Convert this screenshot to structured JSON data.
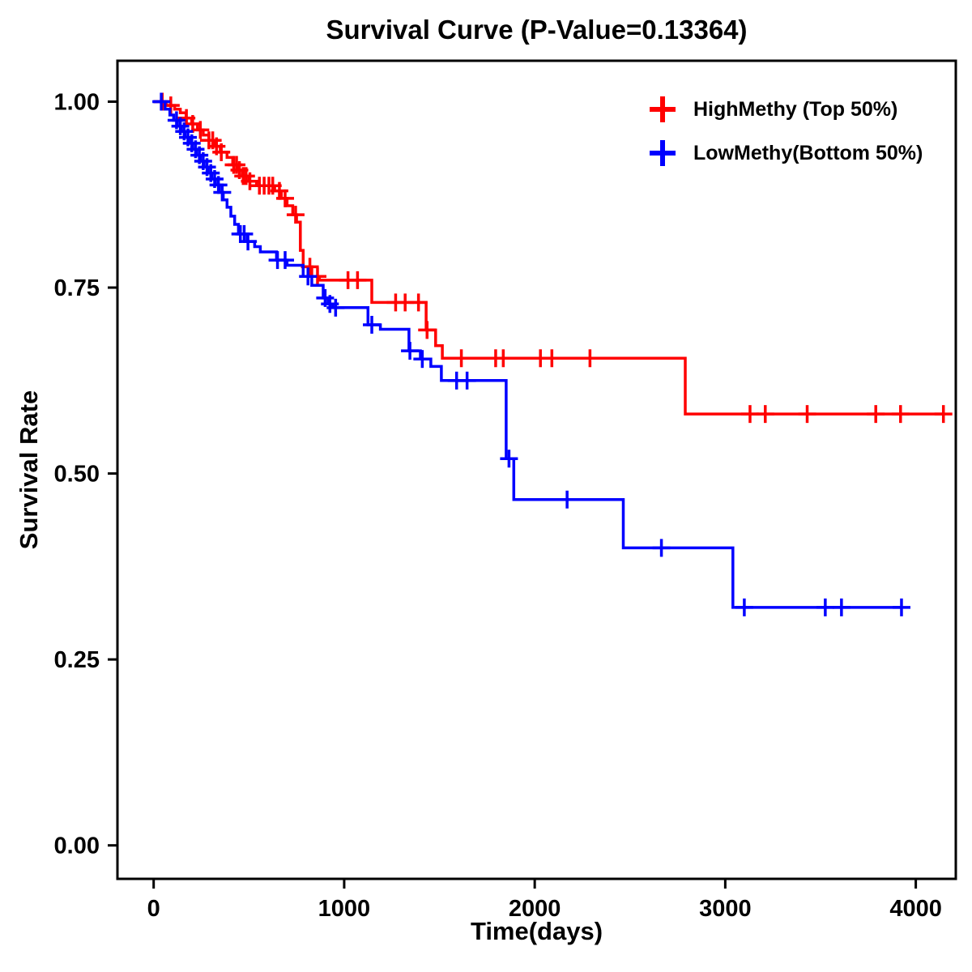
{
  "chart_data": {
    "type": "line",
    "subtype": "kaplan_meier_step_survival",
    "title": "Survival Curve (P-Value=0.13364)",
    "p_value": "0.13364",
    "xlabel": "Time(days)",
    "ylabel": "Survival Rate",
    "xlim": [
      -190,
      4210
    ],
    "ylim": [
      -0.045,
      1.055
    ],
    "grid": false,
    "legend_position": "top-right-inside",
    "xticks": [
      {
        "v": 0,
        "label": "0"
      },
      {
        "v": 1000,
        "label": "1000"
      },
      {
        "v": 2000,
        "label": "2000"
      },
      {
        "v": 3000,
        "label": "3000"
      },
      {
        "v": 4000,
        "label": "4000"
      }
    ],
    "yticks": [
      {
        "v": 0.0,
        "label": "0.00"
      },
      {
        "v": 0.25,
        "label": "0.25"
      },
      {
        "v": 0.5,
        "label": "0.50"
      },
      {
        "v": 0.75,
        "label": "0.75"
      },
      {
        "v": 1.0,
        "label": "1.00"
      }
    ],
    "series": [
      {
        "id": "highmethy",
        "name": "HighMethy (Top 50%)",
        "color": "#ff0000",
        "steps": [
          [
            0,
            1.0
          ],
          [
            65,
            0.995
          ],
          [
            110,
            0.99
          ],
          [
            140,
            0.985
          ],
          [
            170,
            0.978
          ],
          [
            200,
            0.97
          ],
          [
            230,
            0.962
          ],
          [
            260,
            0.955
          ],
          [
            290,
            0.948
          ],
          [
            320,
            0.94
          ],
          [
            350,
            0.932
          ],
          [
            385,
            0.925
          ],
          [
            415,
            0.915
          ],
          [
            440,
            0.908
          ],
          [
            465,
            0.9
          ],
          [
            500,
            0.893
          ],
          [
            540,
            0.887
          ],
          [
            635,
            0.88
          ],
          [
            670,
            0.87
          ],
          [
            700,
            0.86
          ],
          [
            730,
            0.848
          ],
          [
            750,
            0.838
          ],
          [
            770,
            0.8
          ],
          [
            785,
            0.778
          ],
          [
            830,
            0.765
          ],
          [
            870,
            0.76
          ],
          [
            1145,
            0.73
          ],
          [
            1430,
            0.693
          ],
          [
            1480,
            0.672
          ],
          [
            1515,
            0.655
          ],
          [
            2790,
            0.58
          ],
          [
            4150,
            0.58
          ]
        ],
        "censors": [
          [
            45,
            1.0
          ],
          [
            90,
            0.995
          ],
          [
            172,
            0.978
          ],
          [
            205,
            0.97
          ],
          [
            245,
            0.962
          ],
          [
            290,
            0.948
          ],
          [
            310,
            0.948
          ],
          [
            330,
            0.94
          ],
          [
            355,
            0.932
          ],
          [
            420,
            0.915
          ],
          [
            435,
            0.915
          ],
          [
            450,
            0.908
          ],
          [
            470,
            0.9
          ],
          [
            485,
            0.9
          ],
          [
            505,
            0.893
          ],
          [
            555,
            0.887
          ],
          [
            580,
            0.887
          ],
          [
            605,
            0.887
          ],
          [
            625,
            0.887
          ],
          [
            660,
            0.88
          ],
          [
            690,
            0.87
          ],
          [
            745,
            0.848
          ],
          [
            820,
            0.778
          ],
          [
            860,
            0.765
          ],
          [
            1020,
            0.76
          ],
          [
            1070,
            0.76
          ],
          [
            1270,
            0.73
          ],
          [
            1320,
            0.73
          ],
          [
            1390,
            0.73
          ],
          [
            1435,
            0.693
          ],
          [
            1615,
            0.655
          ],
          [
            1795,
            0.655
          ],
          [
            1835,
            0.655
          ],
          [
            2030,
            0.655
          ],
          [
            2090,
            0.655
          ],
          [
            2290,
            0.655
          ],
          [
            3130,
            0.58
          ],
          [
            3210,
            0.58
          ],
          [
            3430,
            0.58
          ],
          [
            3790,
            0.58
          ],
          [
            3920,
            0.58
          ],
          [
            4145,
            0.58
          ]
        ]
      },
      {
        "id": "lowmethy",
        "name": "LowMethy(Bottom 50%)",
        "color": "#0000ff",
        "steps": [
          [
            0,
            1.0
          ],
          [
            60,
            0.99
          ],
          [
            85,
            0.982
          ],
          [
            105,
            0.975
          ],
          [
            125,
            0.967
          ],
          [
            145,
            0.96
          ],
          [
            165,
            0.952
          ],
          [
            185,
            0.944
          ],
          [
            205,
            0.936
          ],
          [
            225,
            0.928
          ],
          [
            245,
            0.92
          ],
          [
            265,
            0.912
          ],
          [
            285,
            0.904
          ],
          [
            305,
            0.896
          ],
          [
            325,
            0.888
          ],
          [
            345,
            0.878
          ],
          [
            365,
            0.868
          ],
          [
            385,
            0.858
          ],
          [
            405,
            0.846
          ],
          [
            425,
            0.835
          ],
          [
            445,
            0.822
          ],
          [
            490,
            0.812
          ],
          [
            530,
            0.805
          ],
          [
            560,
            0.798
          ],
          [
            645,
            0.787
          ],
          [
            700,
            0.78
          ],
          [
            785,
            0.765
          ],
          [
            830,
            0.753
          ],
          [
            890,
            0.736
          ],
          [
            915,
            0.728
          ],
          [
            940,
            0.723
          ],
          [
            1125,
            0.7
          ],
          [
            1190,
            0.694
          ],
          [
            1340,
            0.665
          ],
          [
            1400,
            0.654
          ],
          [
            1455,
            0.644
          ],
          [
            1510,
            0.625
          ],
          [
            1850,
            0.52
          ],
          [
            1890,
            0.465
          ],
          [
            2465,
            0.4
          ],
          [
            3040,
            0.32
          ],
          [
            3930,
            0.32
          ]
        ],
        "censors": [
          [
            40,
            1.0
          ],
          [
            120,
            0.975
          ],
          [
            140,
            0.967
          ],
          [
            160,
            0.96
          ],
          [
            180,
            0.952
          ],
          [
            200,
            0.944
          ],
          [
            220,
            0.936
          ],
          [
            240,
            0.928
          ],
          [
            260,
            0.92
          ],
          [
            280,
            0.912
          ],
          [
            300,
            0.904
          ],
          [
            320,
            0.896
          ],
          [
            340,
            0.888
          ],
          [
            360,
            0.878
          ],
          [
            455,
            0.822
          ],
          [
            475,
            0.822
          ],
          [
            495,
            0.812
          ],
          [
            650,
            0.787
          ],
          [
            690,
            0.787
          ],
          [
            810,
            0.765
          ],
          [
            900,
            0.736
          ],
          [
            925,
            0.728
          ],
          [
            955,
            0.723
          ],
          [
            1145,
            0.7
          ],
          [
            1345,
            0.665
          ],
          [
            1410,
            0.654
          ],
          [
            1590,
            0.625
          ],
          [
            1645,
            0.625
          ],
          [
            1865,
            0.52
          ],
          [
            2170,
            0.465
          ],
          [
            2665,
            0.4
          ],
          [
            3100,
            0.32
          ],
          [
            3525,
            0.32
          ],
          [
            3610,
            0.32
          ],
          [
            3925,
            0.32
          ]
        ]
      }
    ],
    "style": {
      "line_width": 3.5,
      "censor_arm": 11,
      "axis_color": "#000000",
      "background": "#ffffff"
    }
  }
}
